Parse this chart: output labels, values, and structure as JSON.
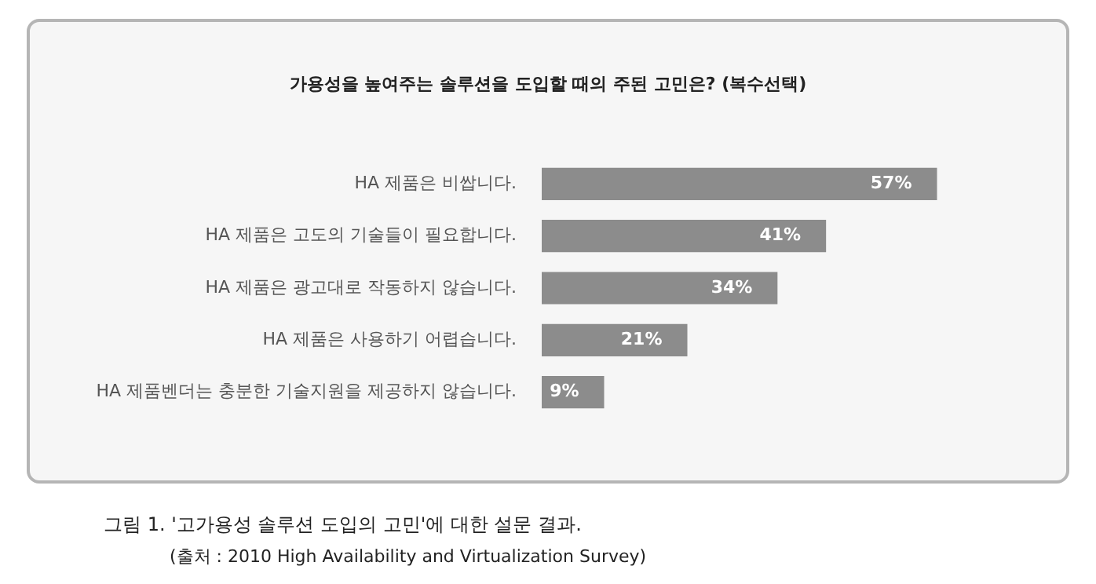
{
  "chart_data": {
    "type": "bar",
    "orientation": "horizontal",
    "title": "가용성을 높여주는 솔루션을 도입할 때의 주된 고민은? (복수선택)",
    "categories": [
      "HA 제품은 비쌉니다.",
      "HA 제품은 고도의 기술들이 필요합니다.",
      "HA 제품은 광고대로 작동하지 않습니다.",
      "HA 제품은 사용하기 어렵습니다.",
      "HA 제품벤더는 충분한 기술지원을 제공하지 않습니다."
    ],
    "values": [
      57,
      41,
      34,
      21,
      9
    ],
    "value_labels": [
      "57%",
      "41%",
      "34%",
      "21%",
      "9%"
    ],
    "color": "#8c8c8c",
    "annotations": [
      "그림 1. '고가용성 솔루션 도입의 고민'에 대한 설문 결과.",
      "(출처 : 2010 High Availability and Virtualization Survey)"
    ]
  }
}
